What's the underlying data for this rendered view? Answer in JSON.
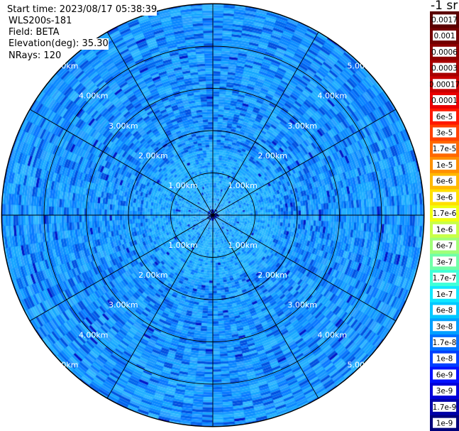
{
  "chart_data": {
    "type": "heatmap",
    "subtype": "polar PPI scan",
    "info": {
      "start_time": "Start time: 2023/08/17 05:38:39",
      "instrument": "WLS200s-181",
      "field": "Field: BETA",
      "elevation": "Elevation(deg): 35.30",
      "nrays": "NRays: 120"
    },
    "units_label": "-1 sr",
    "range_rings_km": [
      1,
      2,
      3,
      4,
      5
    ],
    "max_range_km": 5,
    "range_labels": [
      "1.00km",
      "2.00km",
      "3.00km",
      "4.00km",
      "5.00km"
    ],
    "azimuth_spokes_deg": [
      0,
      30,
      60,
      90,
      120,
      150,
      180,
      210,
      240,
      270,
      300,
      330
    ],
    "nrays": 120,
    "colorbar": {
      "labels": [
        "1e-9",
        "1.7e-9",
        "3e-9",
        "6e-9",
        "1e-8",
        "1.7e-8",
        "3e-8",
        "6e-8",
        "1e-7",
        "1.7e-7",
        "3e-7",
        "6e-7",
        "1e-6",
        "1.7e-6",
        "3e-6",
        "6e-6",
        "1e-5",
        "1.7e-5",
        "3e-5",
        "6e-5",
        "0.0001",
        "0.00017",
        "0.0003",
        "0.0006",
        "0.001",
        "0.0017"
      ],
      "colors": [
        "#00007a",
        "#0000a8",
        "#0000d8",
        "#0010ff",
        "#0040ff",
        "#0070ff",
        "#00a0ff",
        "#00c8ff",
        "#10e8ff",
        "#40ffd8",
        "#70ffa8",
        "#a0ff78",
        "#c8ff48",
        "#f0ff10",
        "#ffe000",
        "#ffb800",
        "#ff9000",
        "#ff6800",
        "#ff4000",
        "#ff1800",
        "#e80000",
        "#c80000",
        "#a80000",
        "#8c0000",
        "#720000",
        "#5a0000"
      ]
    },
    "dominant_value_range": [
      "3e-8",
      "1e-7"
    ]
  }
}
